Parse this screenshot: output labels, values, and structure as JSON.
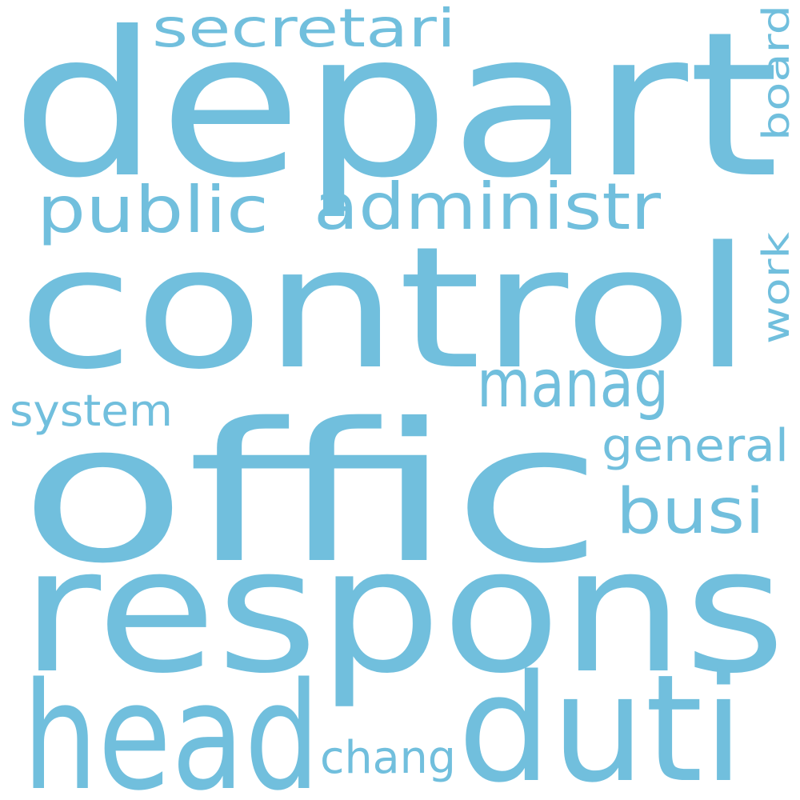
{
  "accent_color": "#71bfdd",
  "background_color": "#ffffff",
  "words": [
    {
      "id": "depart",
      "text": "depart"
    },
    {
      "id": "control",
      "text": "control"
    },
    {
      "id": "offic",
      "text": "offic"
    },
    {
      "id": "respons",
      "text": "respons"
    },
    {
      "id": "head",
      "text": "head"
    },
    {
      "id": "duti",
      "text": "duti"
    },
    {
      "id": "secretari",
      "text": "secretari"
    },
    {
      "id": "public",
      "text": "public"
    },
    {
      "id": "administr",
      "text": "administr"
    },
    {
      "id": "manag",
      "text": "manag"
    },
    {
      "id": "system",
      "text": "system"
    },
    {
      "id": "general",
      "text": "general"
    },
    {
      "id": "busi",
      "text": "busi"
    },
    {
      "id": "chang",
      "text": "chang"
    },
    {
      "id": "board",
      "text": "board"
    },
    {
      "id": "work",
      "text": "work"
    }
  ]
}
